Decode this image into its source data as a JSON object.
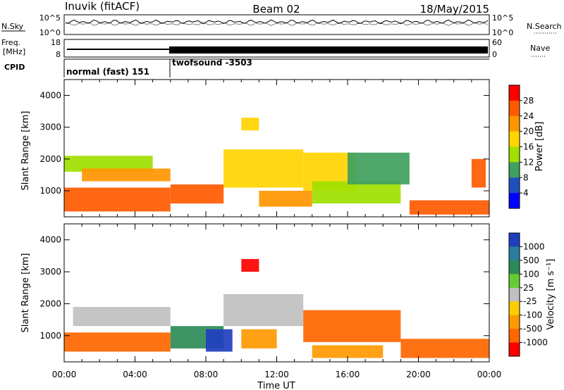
{
  "header": {
    "station": "Inuvik (fitACF)",
    "beam": "Beam 02",
    "date": "18/May/2015"
  },
  "status_panels": {
    "nsky_label": "N.Sky",
    "nsearch_label": "N.Search",
    "noise_ticks_left": [
      "10^5",
      "10^0"
    ],
    "noise_ticks_right": [
      "10^5",
      "10^0"
    ],
    "freq_label_line1": "Freq.",
    "freq_label_line2": "[MHz]",
    "freq_ticks": [
      "18",
      "8"
    ],
    "nave_label": "Nave",
    "nave_ticks": [
      "60",
      "0"
    ],
    "cpid_label": "CPID",
    "cpid_modes": [
      {
        "name": "normal (fast) 151",
        "start_hour": 0,
        "end_hour": 6
      },
      {
        "name": "twofsound -3503",
        "start_hour": 6,
        "end_hour": 24
      }
    ]
  },
  "colorbars": {
    "power": {
      "label": "Power [dB]",
      "ticks": [
        "28",
        "24",
        "20",
        "16",
        "12",
        "8",
        "4"
      ],
      "colors": [
        "#ff0000",
        "#ff5a00",
        "#ff9600",
        "#ffd400",
        "#a0e000",
        "#40a060",
        "#2050c0",
        "#0000ff"
      ]
    },
    "velocity": {
      "label": "Velocity [m s⁻¹]",
      "ticks": [
        "1000",
        "500",
        "100",
        "25",
        "-25",
        "-100",
        "-500",
        "-1000"
      ],
      "colors": [
        "#1f3fbf",
        "#2a7fa0",
        "#2e8b57",
        "#66cc33",
        "#c0c0c0",
        "#ffcc00",
        "#ff9900",
        "#ff6600",
        "#ff0000"
      ]
    }
  },
  "chart_data": [
    {
      "type": "heatmap",
      "title": "Power",
      "xlabel": "",
      "ylabel": "Slant Range [km]",
      "xlim": [
        0,
        24
      ],
      "ylim": [
        180,
        4500
      ],
      "yticks": [
        1000,
        2000,
        3000,
        4000
      ],
      "colorbar_label": "Power [dB]",
      "colorbar_range": [
        0,
        32
      ],
      "bands": [
        {
          "t0": 0.0,
          "t1": 5.0,
          "r0": 1600,
          "r1": 2100,
          "value": 12
        },
        {
          "t0": 0.0,
          "t1": 6.0,
          "r0": 350,
          "r1": 1100,
          "value": 28
        },
        {
          "t0": 1.0,
          "t1": 6.0,
          "r0": 1300,
          "r1": 1700,
          "value": 24
        },
        {
          "t0": 6.0,
          "t1": 9.0,
          "r0": 600,
          "r1": 1200,
          "value": 28
        },
        {
          "t0": 9.0,
          "t1": 13.5,
          "r0": 1100,
          "r1": 2300,
          "value": 20
        },
        {
          "t0": 11.0,
          "t1": 14.0,
          "r0": 500,
          "r1": 1000,
          "value": 24
        },
        {
          "t0": 13.5,
          "t1": 16.5,
          "r0": 1000,
          "r1": 2200,
          "value": 20
        },
        {
          "t0": 14.0,
          "t1": 19.0,
          "r0": 600,
          "r1": 1300,
          "value": 16
        },
        {
          "t0": 16.0,
          "t1": 19.5,
          "r0": 1200,
          "r1": 2200,
          "value": 8
        },
        {
          "t0": 19.5,
          "t1": 24.0,
          "r0": 250,
          "r1": 700,
          "value": 28
        },
        {
          "t0": 23.0,
          "t1": 23.8,
          "r0": 1100,
          "r1": 2000,
          "value": 28
        },
        {
          "t0": 10.0,
          "t1": 11.0,
          "r0": 2900,
          "r1": 3300,
          "value": 20
        }
      ]
    },
    {
      "type": "heatmap",
      "title": "Velocity",
      "xlabel": "Time UT",
      "ylabel": "Slant Range [km]",
      "xlim": [
        0,
        24
      ],
      "ylim": [
        180,
        4500
      ],
      "xticks": [
        "00:00",
        "04:00",
        "08:00",
        "12:00",
        "16:00",
        "20:00",
        "00:00"
      ],
      "yticks": [
        1000,
        2000,
        3000,
        4000
      ],
      "colorbar_label": "Velocity [m s⁻¹]",
      "colorbar_range": [
        -1000,
        1000
      ],
      "bands": [
        {
          "t0": 0.0,
          "t1": 6.0,
          "r0": 500,
          "r1": 1100,
          "value": -500
        },
        {
          "t0": 0.5,
          "t1": 6.0,
          "r0": 1300,
          "r1": 1900,
          "value": 0
        },
        {
          "t0": 6.0,
          "t1": 9.0,
          "r0": 600,
          "r1": 1300,
          "value": 100
        },
        {
          "t0": 8.0,
          "t1": 9.5,
          "r0": 500,
          "r1": 1200,
          "value": 1000
        },
        {
          "t0": 9.0,
          "t1": 13.5,
          "r0": 1300,
          "r1": 2300,
          "value": 0
        },
        {
          "t0": 10.0,
          "t1": 12.0,
          "r0": 600,
          "r1": 1200,
          "value": -100
        },
        {
          "t0": 13.5,
          "t1": 19.0,
          "r0": 800,
          "r1": 1800,
          "value": -500
        },
        {
          "t0": 14.0,
          "t1": 18.0,
          "r0": 300,
          "r1": 700,
          "value": -100
        },
        {
          "t0": 19.0,
          "t1": 24.0,
          "r0": 300,
          "r1": 900,
          "value": -500
        },
        {
          "t0": 10.0,
          "t1": 11.0,
          "r0": 3000,
          "r1": 3400,
          "value": -1000
        }
      ]
    }
  ]
}
